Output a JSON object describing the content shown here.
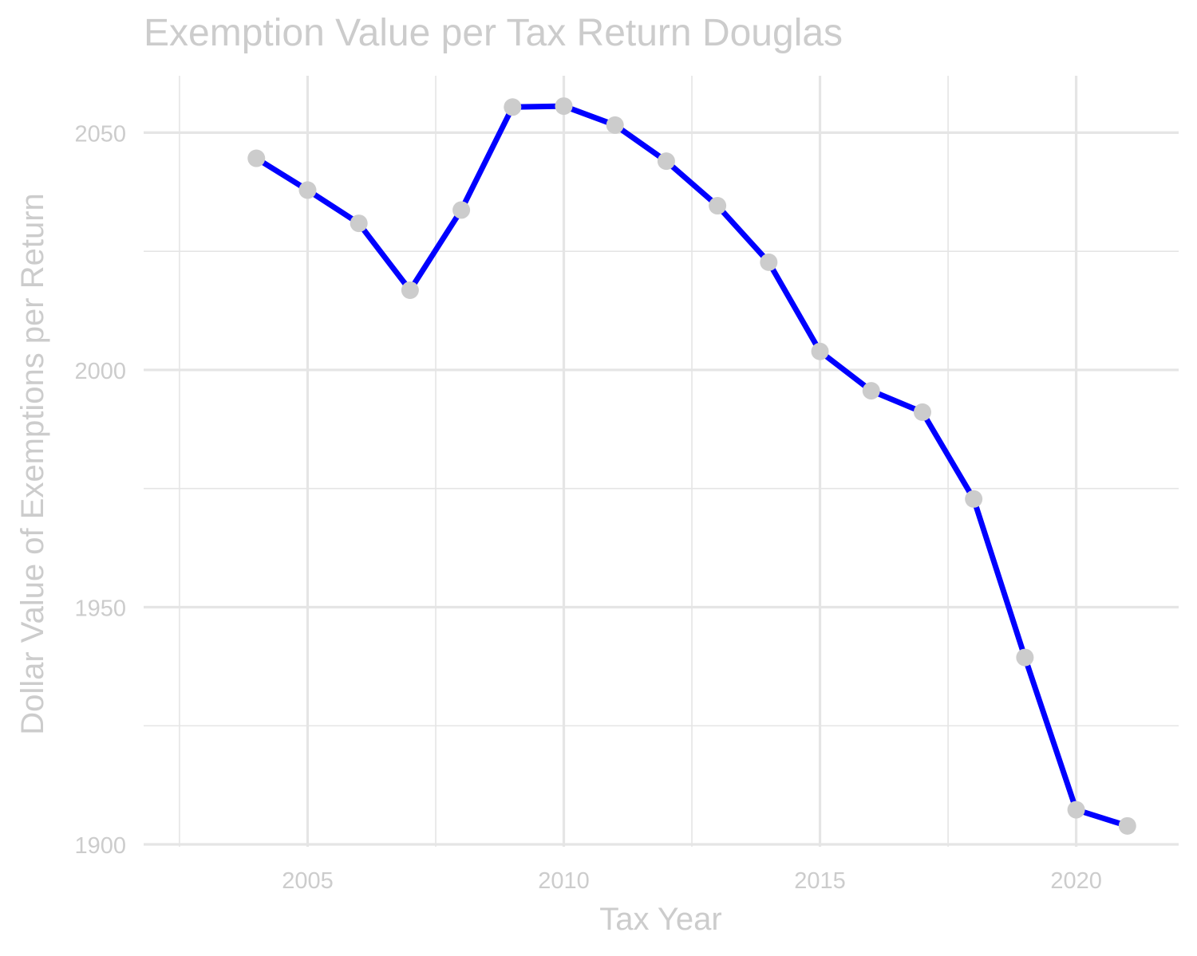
{
  "chart_data": {
    "type": "line",
    "title": "Exemption Value per Tax Return Douglas",
    "xlabel": "Tax Year",
    "ylabel": "Dollar Value of Exemptions per Return",
    "x": [
      2004,
      2005,
      2006,
      2007,
      2008,
      2009,
      2010,
      2011,
      2012,
      2013,
      2014,
      2015,
      2016,
      2017,
      2018,
      2019,
      2020,
      2021
    ],
    "series": [
      {
        "values": [
          2044.6,
          2037.9,
          2030.9,
          2016.8,
          2033.7,
          2055.4,
          2055.6,
          2051.6,
          2044.0,
          2034.6,
          2022.7,
          2003.9,
          1995.6,
          1991.1,
          1972.8,
          1939.4,
          1907.3,
          1903.9
        ]
      }
    ],
    "xlim": [
      2001.8,
      2022.0
    ],
    "ylim": [
      1899.5,
      2062.0
    ],
    "x_ticks": [
      "2005",
      "2010",
      "2015",
      "2020"
    ],
    "y_ticks": [
      "1900",
      "1950",
      "2000",
      "2050"
    ],
    "grid": true,
    "colors": {
      "line": "#0000ff",
      "point": "#cccccc",
      "text": "#cccccc",
      "grid": "#e5e5e5"
    }
  }
}
